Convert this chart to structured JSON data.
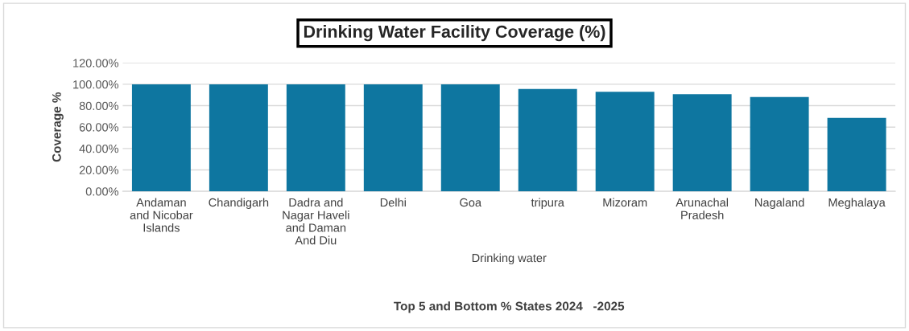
{
  "chart_data": {
    "type": "bar",
    "title": "Drinking Water Facility Coverage (%)",
    "ylabel": "Coverage %",
    "xlabel": "Drinking water",
    "annotations": [
      "Top 5 and Bottom % States 2024   -2025"
    ],
    "categories": [
      "Andaman\nand Nicobar\nIslands",
      "Chandigarh",
      "Dadra and\nNagar Haveli\nand Daman\nAnd Diu",
      "Delhi",
      "Goa",
      "tripura",
      "Mizoram",
      "Arunachal\nPradesh",
      "Nagaland",
      "Meghalaya"
    ],
    "series": [
      {
        "color": "#0e76a0",
        "values": [
          100,
          100,
          100,
          100,
          100,
          95.7,
          93.0,
          90.8,
          88.1,
          68.6
        ]
      }
    ],
    "ylim": [
      0,
      120
    ],
    "yticks": [
      {
        "value": 0,
        "label": "0.00%"
      },
      {
        "value": 20,
        "label": "20.00%"
      },
      {
        "value": 40,
        "label": "40.00%"
      },
      {
        "value": 60,
        "label": "60.00%"
      },
      {
        "value": 80,
        "label": "80.00%"
      },
      {
        "value": 100,
        "label": "100.00%"
      },
      {
        "value": 120,
        "label": "120.00%"
      }
    ],
    "grid": "y",
    "legend": false
  }
}
